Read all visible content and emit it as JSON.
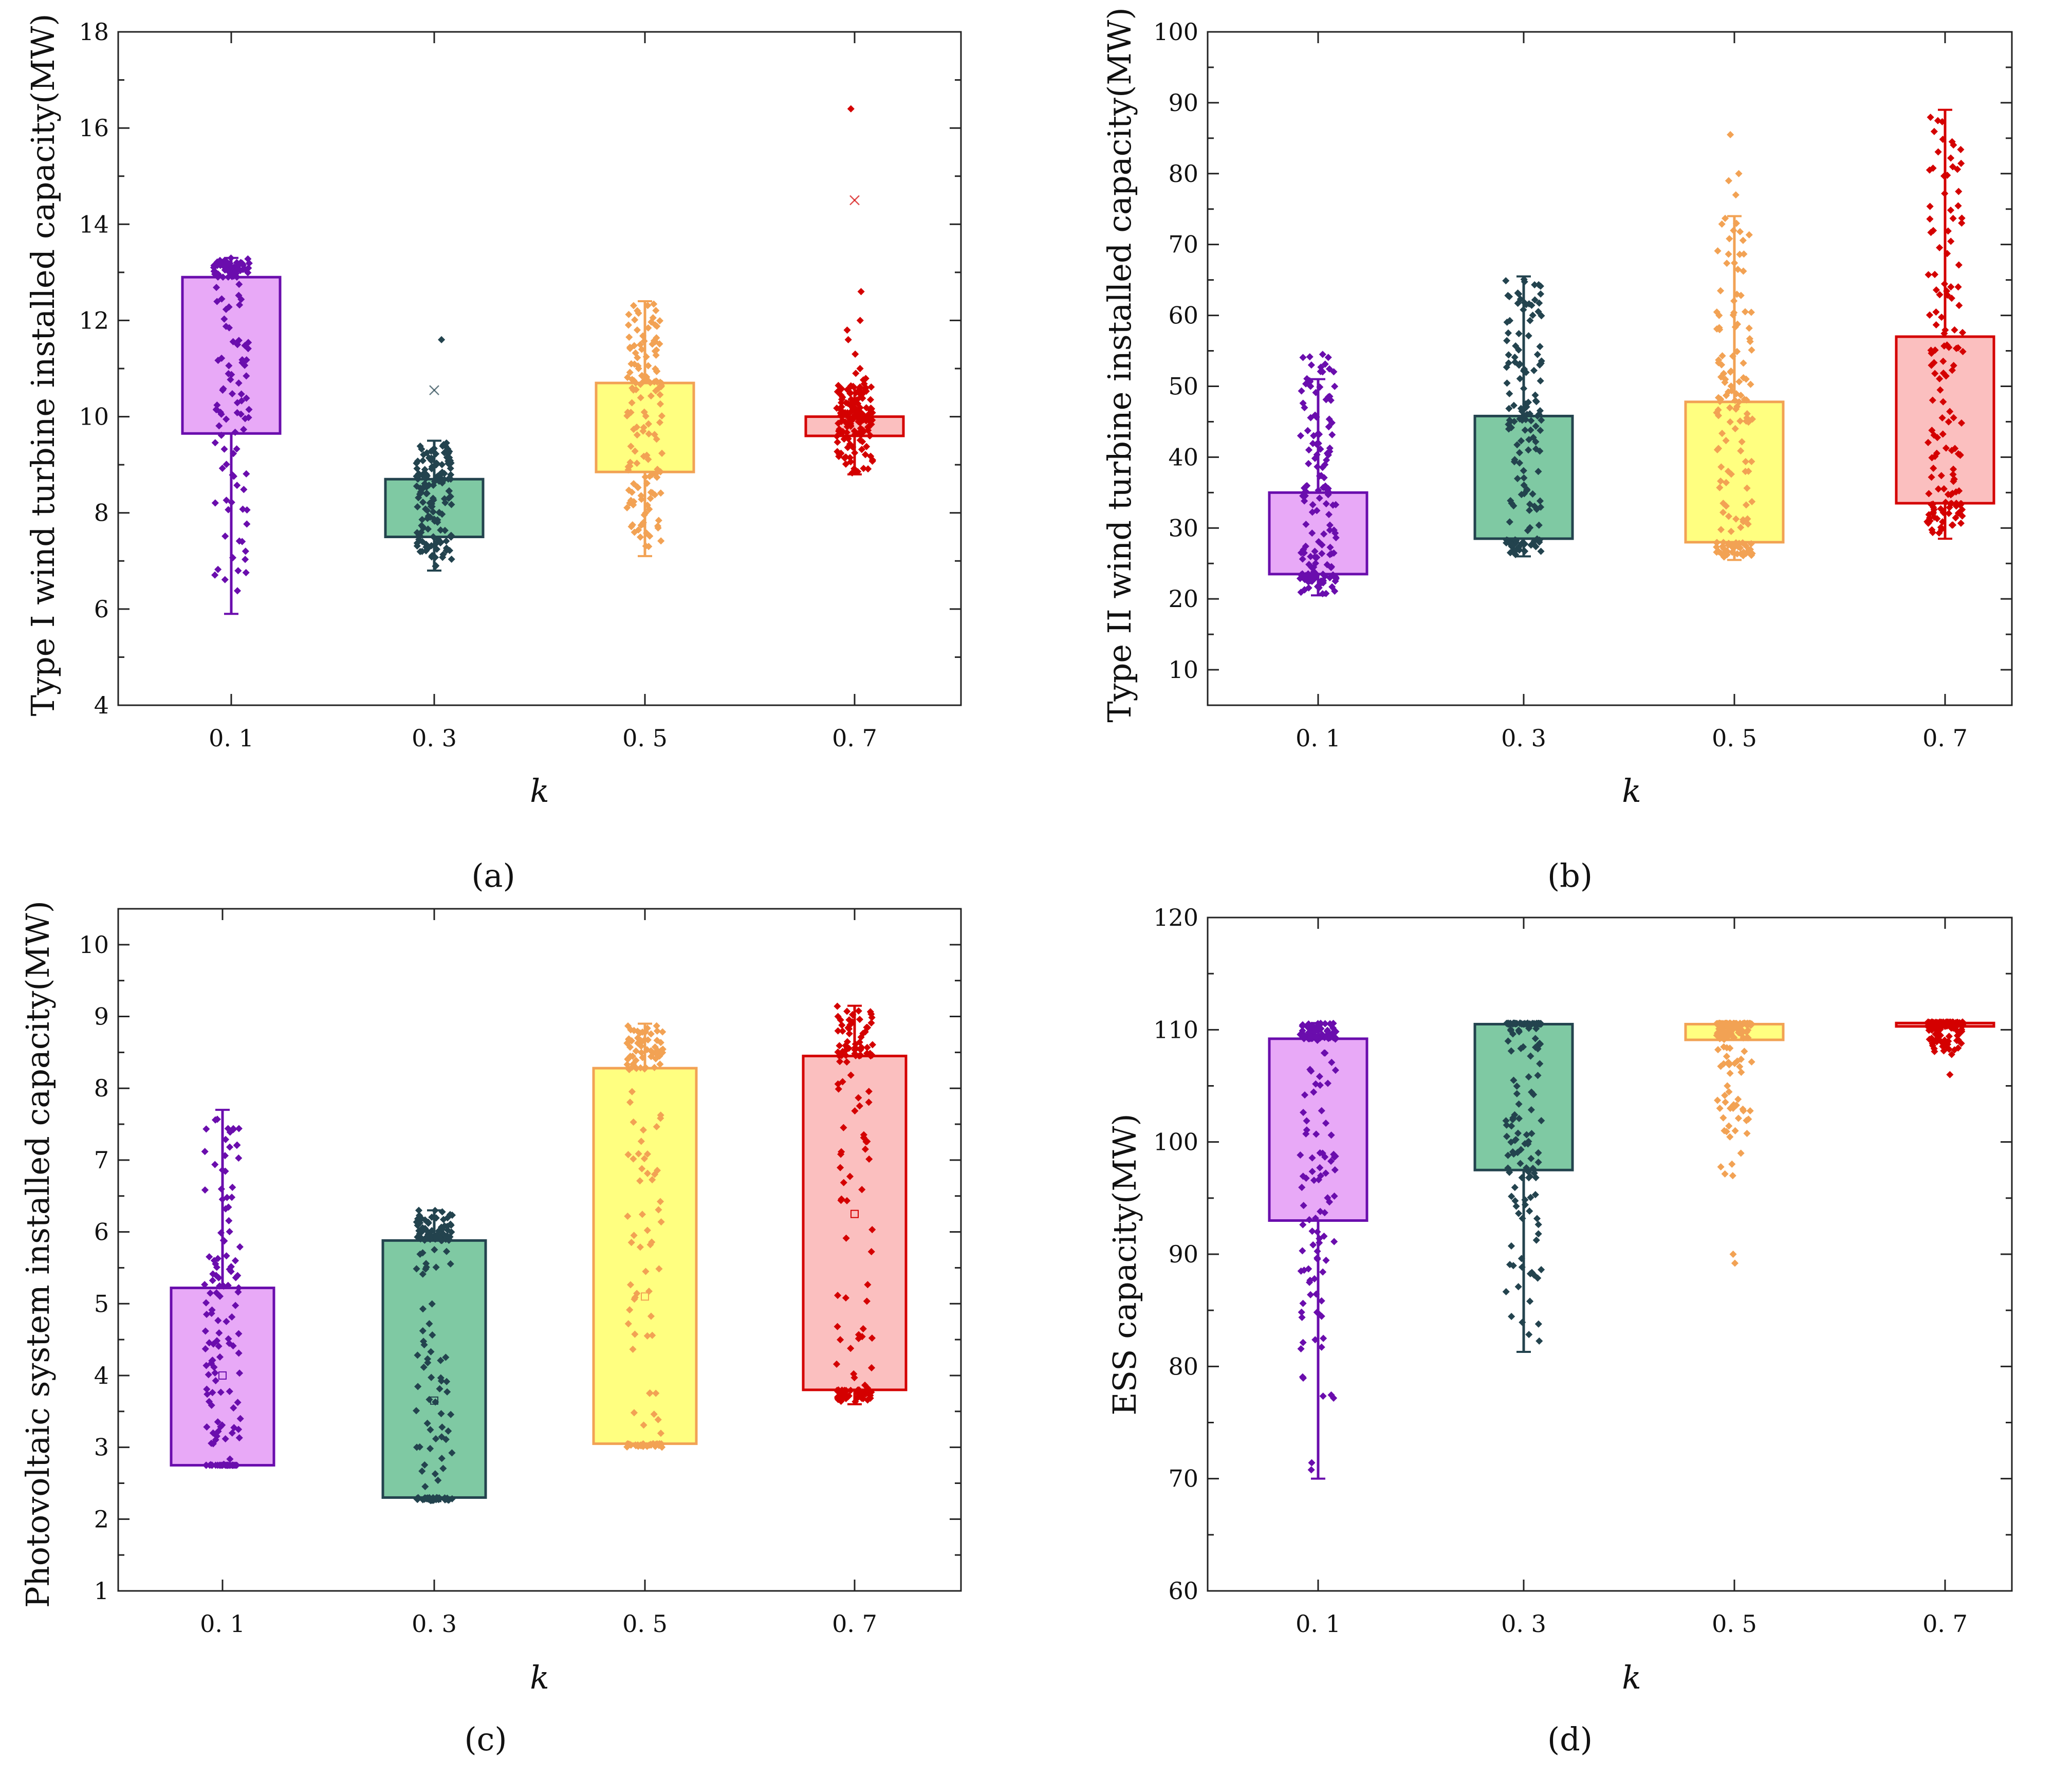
{
  "palette": {
    "0.1": {
      "fill": "#E8A9F7",
      "stroke": "#6A0DAD",
      "dot": "#6A0DAD"
    },
    "0.3": {
      "fill": "#7FC9A3",
      "stroke": "#23434E",
      "dot": "#23434E"
    },
    "0.5": {
      "fill": "#FFFF80",
      "stroke": "#F2A254",
      "dot": "#F2A254"
    },
    "0.7": {
      "fill": "#FBBFBF",
      "stroke": "#D40000",
      "dot": "#D40000"
    }
  },
  "chart_data": [
    {
      "id": "a",
      "panel_label": "(a)",
      "type": "box",
      "title": "",
      "ylabel": "Type I wind turbine installed capacity(MW)",
      "xlabel": "k",
      "ylim": [
        4,
        18
      ],
      "yticks": [
        "4",
        "6",
        "8",
        "10",
        "12",
        "14",
        "16",
        "18"
      ],
      "categories": [
        "0.1",
        "0.3",
        "0.5",
        "0.7"
      ],
      "boxes": [
        {
          "q1": 9.65,
          "q3": 12.9,
          "whisker_low": 5.9,
          "whisker_high": 13.3,
          "mean": null,
          "outliers": [],
          "points_min": 5.9,
          "points_max": 13.3
        },
        {
          "q1": 7.5,
          "q3": 8.7,
          "whisker_low": 6.8,
          "whisker_high": 9.5,
          "mean": 10.55,
          "outliers": [
            11.6
          ],
          "points_min": 6.8,
          "points_max": 9.5
        },
        {
          "q1": 8.85,
          "q3": 10.7,
          "whisker_low": 7.1,
          "whisker_high": 12.4,
          "mean": null,
          "outliers": [],
          "points_min": 7.1,
          "points_max": 12.4
        },
        {
          "q1": 9.6,
          "q3": 10.0,
          "whisker_low": 8.8,
          "whisker_high": 10.6,
          "mean": 14.5,
          "outliers": [
            16.4,
            12.6,
            12.0,
            11.8,
            11.6,
            11.3,
            11.0,
            10.9
          ],
          "points_min": 8.8,
          "points_max": 10.8
        }
      ]
    },
    {
      "id": "b",
      "panel_label": "(b)",
      "type": "box",
      "title": "",
      "ylabel": "Type II wind turbine installed capacity(MW)",
      "xlabel": "k",
      "ylim": [
        5,
        100
      ],
      "yticks": [
        "10",
        "20",
        "30",
        "40",
        "50",
        "60",
        "70",
        "80",
        "90",
        "100"
      ],
      "categories": [
        "0.1",
        "0.3",
        "0.5",
        "0.7"
      ],
      "boxes": [
        {
          "q1": 23.5,
          "q3": 35,
          "whisker_low": 20.5,
          "whisker_high": 51,
          "mean": null,
          "outliers": [
            54.5,
            53,
            50
          ],
          "points_min": 20.5,
          "points_max": 54.5
        },
        {
          "q1": 28.5,
          "q3": 45.8,
          "whisker_low": 26,
          "whisker_high": 65.5,
          "mean": null,
          "outliers": [],
          "points_min": 26,
          "points_max": 65.5
        },
        {
          "q1": 28,
          "q3": 47.8,
          "whisker_low": 25.5,
          "whisker_high": 74,
          "mean": null,
          "outliers": [
            85.5,
            80,
            79,
            77
          ],
          "points_min": 25.5,
          "points_max": 74
        },
        {
          "q1": 33.5,
          "q3": 57,
          "whisker_low": 28.5,
          "whisker_high": 89,
          "mean": null,
          "outliers": [],
          "points_min": 28.5,
          "points_max": 89
        }
      ]
    },
    {
      "id": "c",
      "panel_label": "(c)",
      "type": "box",
      "title": "",
      "ylabel": "Photovoltaic system installed capacity(MW)",
      "xlabel": "k",
      "ylim": [
        1,
        10.5
      ],
      "yticks": [
        "1",
        "2",
        "3",
        "4",
        "5",
        "6",
        "7",
        "8",
        "9",
        "10"
      ],
      "categories": [
        "0.1",
        "0.3",
        "0.5",
        "0.7"
      ],
      "boxes": [
        {
          "q1": 2.75,
          "q3": 5.22,
          "whisker_low": 2.75,
          "whisker_high": 7.7,
          "mean": 4.0,
          "outliers": [],
          "points_min": 2.75,
          "points_max": 7.7
        },
        {
          "q1": 2.3,
          "q3": 5.88,
          "whisker_low": 2.25,
          "whisker_high": 6.3,
          "mean": 3.65,
          "outliers": [],
          "points_min": 2.25,
          "points_max": 6.3
        },
        {
          "q1": 3.05,
          "q3": 8.28,
          "whisker_low": 3.0,
          "whisker_high": 8.9,
          "mean": 5.1,
          "outliers": [],
          "points_min": 3.0,
          "points_max": 8.9
        },
        {
          "q1": 3.8,
          "q3": 8.45,
          "whisker_low": 3.6,
          "whisker_high": 9.15,
          "mean": 6.25,
          "outliers": [],
          "points_min": 3.6,
          "points_max": 9.15
        }
      ]
    },
    {
      "id": "d",
      "panel_label": "(d)",
      "type": "box",
      "title": "",
      "ylabel": "ESS capacity(MW)",
      "xlabel": "k",
      "ylim": [
        60,
        120
      ],
      "yticks": [
        "60",
        "70",
        "80",
        "90",
        "100",
        "110",
        "120"
      ],
      "categories": [
        "0.1",
        "0.3",
        "0.5",
        "0.7"
      ],
      "boxes": [
        {
          "q1": 93,
          "q3": 109.2,
          "whisker_low": 70,
          "whisker_high": 110.6,
          "mean": null,
          "outliers": [],
          "points_min": 70,
          "points_max": 110.6
        },
        {
          "q1": 97.5,
          "q3": 110.5,
          "whisker_low": 81.3,
          "whisker_high": 110.6,
          "mean": null,
          "outliers": [],
          "points_min": 81.3,
          "points_max": 110.6
        },
        {
          "q1": 109.1,
          "q3": 110.5,
          "whisker_low": 109.1,
          "whisker_high": 110.6,
          "mean": null,
          "outliers": [
            107,
            105,
            103,
            101,
            99,
            97,
            90,
            89.2
          ],
          "points_min": 96.5,
          "points_max": 110.6
        },
        {
          "q1": 110.3,
          "q3": 110.6,
          "whisker_low": 110.2,
          "whisker_high": 110.7,
          "mean": null,
          "outliers": [
            109.5,
            108.7,
            107.8,
            106
          ],
          "points_min": 107.8,
          "points_max": 110.7
        }
      ]
    }
  ]
}
